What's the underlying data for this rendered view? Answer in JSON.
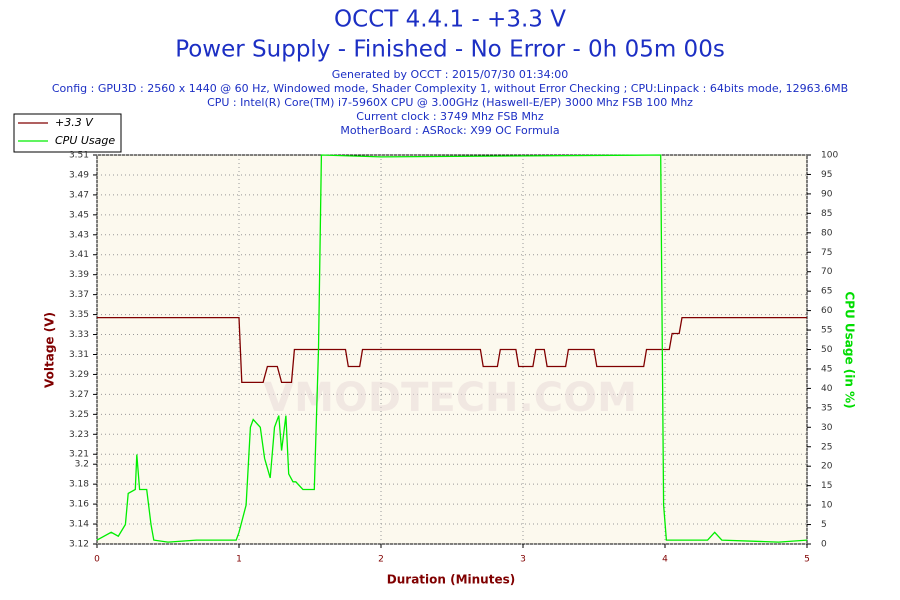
{
  "chart_data": {
    "type": "line",
    "title": "OCCT 4.4.1 - +3.3 V",
    "subtitle": "Power Supply - Finished - No Error - 0h 05m 00s",
    "info": [
      "Generated by OCCT : 2015/07/30 01:34:00",
      "Config : GPU3D : 2560 x 1440 @ 60 Hz, Windowed mode, Shader Complexity 1, without Error Checking ; CPU:Linpack : 64bits mode, 12963.6MB",
      "CPU : Intel(R) Core(TM) i7-5960X CPU @ 3.00GHz (Haswell-E/EP) 3000 Mhz FSB 100 Mhz",
      "Current clock : 3749 Mhz FSB  Mhz",
      "MotherBoard : ASRock: X99 OC Formula"
    ],
    "watermark": "VMODTECH.COM",
    "x_label": "Duration (Minutes)",
    "y_label": "Voltage (V)",
    "y2_label": "CPU Usage (in %)",
    "xlim": [
      0,
      5
    ],
    "xticks": [
      0,
      1,
      2,
      3,
      4,
      5
    ],
    "ylim": [
      3.12,
      3.51
    ],
    "yticks": [
      3.12,
      3.14,
      3.16,
      3.18,
      3.2,
      3.21,
      3.23,
      3.25,
      3.27,
      3.29,
      3.31,
      3.33,
      3.35,
      3.37,
      3.39,
      3.41,
      3.43,
      3.45,
      3.47,
      3.49,
      3.51
    ],
    "y2lim": [
      0,
      100
    ],
    "y2ticks": [
      0,
      5,
      10,
      15,
      20,
      25,
      30,
      35,
      40,
      45,
      50,
      55,
      60,
      65,
      70,
      75,
      80,
      85,
      90,
      95,
      100
    ],
    "grid": true,
    "legend": "top-left",
    "series": [
      {
        "name": "+3.3 V",
        "color": "#800000",
        "x": [
          0,
          1.0,
          1.02,
          1.17,
          1.2,
          1.27,
          1.3,
          1.37,
          1.39,
          1.75,
          1.77,
          1.85,
          1.87,
          2.7,
          2.72,
          2.82,
          2.84,
          2.95,
          2.97,
          3.07,
          3.09,
          3.15,
          3.17,
          3.3,
          3.32,
          3.5,
          3.52,
          3.85,
          3.87,
          4.03,
          4.05,
          4.1,
          4.12,
          5
        ],
        "values": [
          3.347,
          3.347,
          3.282,
          3.282,
          3.298,
          3.298,
          3.282,
          3.282,
          3.315,
          3.315,
          3.298,
          3.298,
          3.315,
          3.315,
          3.298,
          3.298,
          3.315,
          3.315,
          3.298,
          3.298,
          3.315,
          3.315,
          3.298,
          3.298,
          3.315,
          3.315,
          3.298,
          3.298,
          3.315,
          3.315,
          3.331,
          3.331,
          3.347,
          3.347
        ]
      },
      {
        "name": "CPU Usage",
        "color": "#00ee00",
        "axis": "y2",
        "x": [
          0,
          0.1,
          0.15,
          0.2,
          0.22,
          0.27,
          0.28,
          0.3,
          0.35,
          0.38,
          0.4,
          0.5,
          0.7,
          0.98,
          1.0,
          1.05,
          1.08,
          1.1,
          1.15,
          1.18,
          1.22,
          1.25,
          1.28,
          1.3,
          1.33,
          1.35,
          1.38,
          1.4,
          1.45,
          1.53,
          1.56,
          1.58,
          2.0,
          3.97,
          3.99,
          4.01,
          4.3,
          4.35,
          4.4,
          4.8,
          5
        ],
        "values": [
          1,
          3,
          2,
          5,
          13,
          14,
          23,
          14,
          14,
          5,
          1,
          0.5,
          1,
          1,
          3,
          10,
          30,
          32,
          30,
          22,
          17,
          30,
          33,
          24,
          33,
          18,
          16,
          16,
          14,
          14,
          50,
          100,
          99.5,
          100,
          10,
          1,
          1,
          3,
          1,
          0.5,
          1
        ]
      }
    ]
  }
}
